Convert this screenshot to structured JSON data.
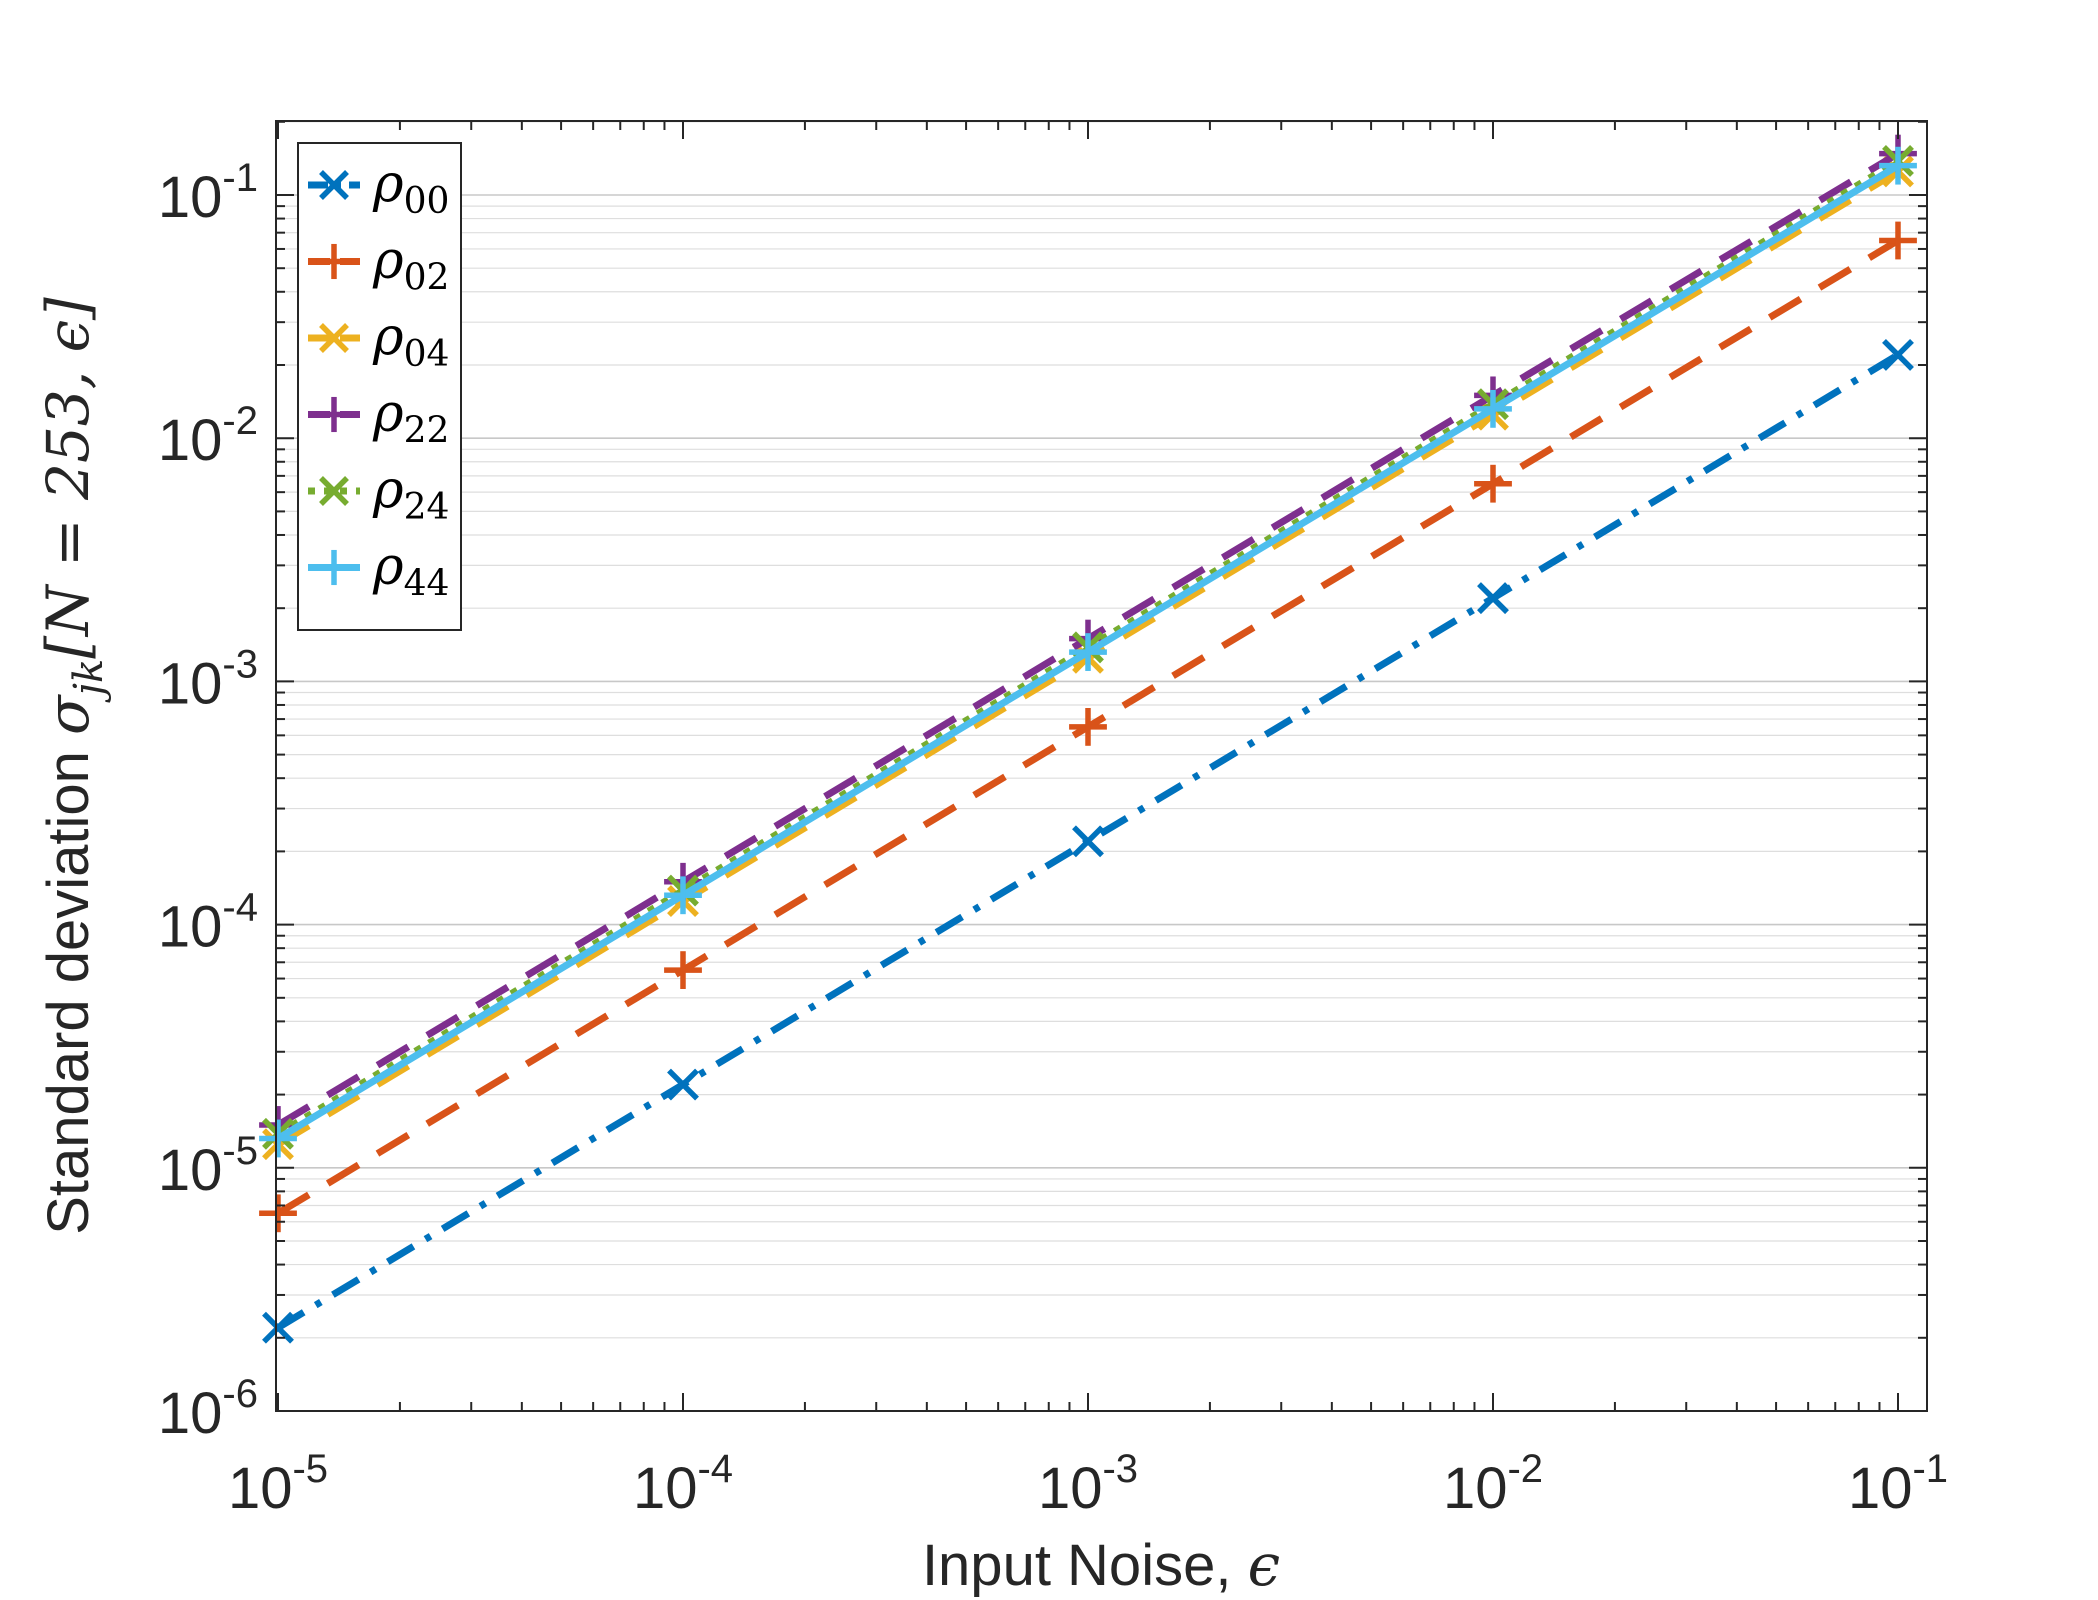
{
  "chart_data": {
    "type": "line",
    "scale": {
      "x": "log",
      "y": "log"
    },
    "xlim": [
      1e-05,
      0.1
    ],
    "ylim": [
      1e-06,
      0.2
    ],
    "x": [
      1e-05,
      0.0001,
      0.001,
      0.01,
      0.1
    ],
    "xticks": [
      {
        "value": 1e-05,
        "base": "10",
        "exp": "-5"
      },
      {
        "value": 0.0001,
        "base": "10",
        "exp": "-4"
      },
      {
        "value": 0.001,
        "base": "10",
        "exp": "-3"
      },
      {
        "value": 0.01,
        "base": "10",
        "exp": "-2"
      },
      {
        "value": 0.1,
        "base": "10",
        "exp": "-1"
      }
    ],
    "yticks": [
      {
        "value": 1e-06,
        "base": "10",
        "exp": "-6"
      },
      {
        "value": 1e-05,
        "base": "10",
        "exp": "-5"
      },
      {
        "value": 0.0001,
        "base": "10",
        "exp": "-4"
      },
      {
        "value": 0.001,
        "base": "10",
        "exp": "-3"
      },
      {
        "value": 0.01,
        "base": "10",
        "exp": "-2"
      },
      {
        "value": 0.1,
        "base": "10",
        "exp": "-1"
      }
    ],
    "xlabel": {
      "text": "Input Noise, ",
      "symbol": "ϵ"
    },
    "ylabel": {
      "text": "Standard deviation ",
      "symbol": "σ",
      "sub": "jk",
      "bracket": "[N = 253, ϵ]"
    },
    "grid": "y-minor",
    "legend_position": "top-left",
    "series": [
      {
        "name": "ρ",
        "sub": "00",
        "color": "#0072BD",
        "marker": "x",
        "dash": "dashdot",
        "values": [
          2.2e-06,
          2.2e-05,
          0.00022,
          0.0022,
          0.022
        ]
      },
      {
        "name": "ρ",
        "sub": "02",
        "color": "#D95319",
        "marker": "+",
        "dash": "dash",
        "values": [
          6.5e-06,
          6.5e-05,
          0.00065,
          0.0065,
          0.065
        ]
      },
      {
        "name": "ρ",
        "sub": "04",
        "color": "#EDB120",
        "marker": "x",
        "dash": "dash",
        "values": [
          1.25e-05,
          0.000125,
          0.00125,
          0.0125,
          0.125
        ]
      },
      {
        "name": "ρ",
        "sub": "22",
        "color": "#7E2F8E",
        "marker": "+",
        "dash": "dash",
        "values": [
          1.5e-05,
          0.00015,
          0.0015,
          0.015,
          0.148
        ]
      },
      {
        "name": "ρ",
        "sub": "24",
        "color": "#77AC30",
        "marker": "x",
        "dash": "dot",
        "values": [
          1.38e-05,
          0.000138,
          0.00138,
          0.0138,
          0.138
        ]
      },
      {
        "name": "ρ",
        "sub": "44",
        "color": "#4DBEEE",
        "marker": "+",
        "dash": "solid",
        "values": [
          1.32e-05,
          0.000132,
          0.00132,
          0.0132,
          0.132
        ]
      }
    ]
  }
}
